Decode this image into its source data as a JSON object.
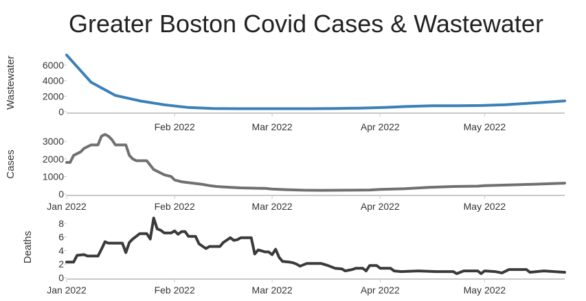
{
  "title": "Greater Boston Covid Cases & Wastewater",
  "colors": {
    "wastewater": "#3a80b8",
    "cases": "#707070",
    "deaths": "#3a3a3a",
    "axis": "#c8c8c8",
    "text": "#333333"
  },
  "chart_data": [
    {
      "type": "line",
      "id": "wastewater",
      "ylabel": "Wastewater",
      "ylim": [
        0,
        7500
      ],
      "yticks": [
        0,
        2000,
        4000,
        6000
      ],
      "xlim": [
        "2022-01-01",
        "2022-05-24"
      ],
      "xticks": [
        {
          "date": "2022-02-01",
          "label": "Feb 2022"
        },
        {
          "date": "2022-03-01",
          "label": "Mar 2022"
        },
        {
          "date": "2022-04-01",
          "label": "Apr 2022"
        },
        {
          "date": "2022-05-01",
          "label": "May 2022"
        }
      ],
      "series": [
        {
          "color": "#3a80b8",
          "points": [
            [
              "2022-01-01",
              7300
            ],
            [
              "2022-01-08",
              3800
            ],
            [
              "2022-01-15",
              2100
            ],
            [
              "2022-01-22",
              1400
            ],
            [
              "2022-01-29",
              900
            ],
            [
              "2022-02-05",
              550
            ],
            [
              "2022-02-12",
              420
            ],
            [
              "2022-02-19",
              400
            ],
            [
              "2022-02-26",
              400
            ],
            [
              "2022-03-05",
              400
            ],
            [
              "2022-03-12",
              400
            ],
            [
              "2022-03-19",
              420
            ],
            [
              "2022-03-26",
              470
            ],
            [
              "2022-04-02",
              560
            ],
            [
              "2022-04-09",
              680
            ],
            [
              "2022-04-16",
              780
            ],
            [
              "2022-04-23",
              780
            ],
            [
              "2022-04-30",
              800
            ],
            [
              "2022-05-07",
              900
            ],
            [
              "2022-05-14",
              1100
            ],
            [
              "2022-05-21",
              1300
            ],
            [
              "2022-05-24",
              1400
            ]
          ]
        }
      ]
    },
    {
      "type": "line",
      "id": "cases",
      "ylabel": "Cases",
      "ylim": [
        0,
        3400
      ],
      "yticks": [
        0,
        1000,
        2000,
        3000
      ],
      "xlim": [
        "2022-01-01",
        "2022-05-24"
      ],
      "xticks": [
        {
          "date": "2022-01-01",
          "label": "Jan 2022"
        },
        {
          "date": "2022-02-01",
          "label": "Feb 2022"
        },
        {
          "date": "2022-03-01",
          "label": "Mar 2022"
        },
        {
          "date": "2022-04-01",
          "label": "Apr 2022"
        },
        {
          "date": "2022-05-01",
          "label": "May 2022"
        }
      ],
      "series": [
        {
          "color": "#707070",
          "points": [
            [
              "2022-01-01",
              1800
            ],
            [
              "2022-01-02",
              1800
            ],
            [
              "2022-01-03",
              2200
            ],
            [
              "2022-01-05",
              2400
            ],
            [
              "2022-01-06",
              2600
            ],
            [
              "2022-01-07",
              2700
            ],
            [
              "2022-01-08",
              2800
            ],
            [
              "2022-01-10",
              2800
            ],
            [
              "2022-01-11",
              3300
            ],
            [
              "2022-01-12",
              3400
            ],
            [
              "2022-01-13",
              3300
            ],
            [
              "2022-01-14",
              3100
            ],
            [
              "2022-01-15",
              2800
            ],
            [
              "2022-01-18",
              2800
            ],
            [
              "2022-01-19",
              2200
            ],
            [
              "2022-01-20",
              2000
            ],
            [
              "2022-01-21",
              1900
            ],
            [
              "2022-01-24",
              1900
            ],
            [
              "2022-01-26",
              1400
            ],
            [
              "2022-01-28",
              1200
            ],
            [
              "2022-01-29",
              1100
            ],
            [
              "2022-01-31",
              1000
            ],
            [
              "2022-02-01",
              800
            ],
            [
              "2022-02-03",
              700
            ],
            [
              "2022-02-05",
              650
            ],
            [
              "2022-02-07",
              600
            ],
            [
              "2022-02-09",
              550
            ],
            [
              "2022-02-11",
              480
            ],
            [
              "2022-02-13",
              430
            ],
            [
              "2022-02-17",
              380
            ],
            [
              "2022-02-20",
              350
            ],
            [
              "2022-02-27",
              320
            ],
            [
              "2022-03-01",
              280
            ],
            [
              "2022-03-05",
              250
            ],
            [
              "2022-03-10",
              220
            ],
            [
              "2022-03-15",
              210
            ],
            [
              "2022-03-22",
              220
            ],
            [
              "2022-03-29",
              230
            ],
            [
              "2022-04-01",
              260
            ],
            [
              "2022-04-08",
              300
            ],
            [
              "2022-04-15",
              380
            ],
            [
              "2022-04-22",
              430
            ],
            [
              "2022-04-29",
              450
            ],
            [
              "2022-05-01",
              480
            ],
            [
              "2022-05-08",
              520
            ],
            [
              "2022-05-15",
              560
            ],
            [
              "2022-05-24",
              620
            ]
          ]
        }
      ]
    },
    {
      "type": "line",
      "id": "deaths",
      "ylabel": "Deaths",
      "ylim": [
        0,
        9
      ],
      "yticks": [
        0,
        2,
        4,
        6,
        8
      ],
      "xlim": [
        "2022-01-01",
        "2022-05-24"
      ],
      "xticks": [
        {
          "date": "2022-01-01",
          "label": "Jan 2022"
        },
        {
          "date": "2022-02-01",
          "label": "Feb 2022"
        },
        {
          "date": "2022-03-01",
          "label": "Mar 2022"
        },
        {
          "date": "2022-04-01",
          "label": "Apr 2022"
        },
        {
          "date": "2022-05-01",
          "label": "May 2022"
        }
      ],
      "series": [
        {
          "color": "#3a3a3a",
          "points": [
            [
              "2022-01-01",
              2.3
            ],
            [
              "2022-01-03",
              2.3
            ],
            [
              "2022-01-04",
              3.3
            ],
            [
              "2022-01-06",
              3.4
            ],
            [
              "2022-01-07",
              3.2
            ],
            [
              "2022-01-10",
              3.2
            ],
            [
              "2022-01-11",
              4.2
            ],
            [
              "2022-01-12",
              5.3
            ],
            [
              "2022-01-13",
              5.1
            ],
            [
              "2022-01-17",
              5.1
            ],
            [
              "2022-01-18",
              3.7
            ],
            [
              "2022-01-19",
              5.2
            ],
            [
              "2022-01-20",
              5.7
            ],
            [
              "2022-01-22",
              6.5
            ],
            [
              "2022-01-24",
              6.5
            ],
            [
              "2022-01-25",
              5.7
            ],
            [
              "2022-01-26",
              8.8
            ],
            [
              "2022-01-27",
              7.2
            ],
            [
              "2022-01-28",
              7.0
            ],
            [
              "2022-01-29",
              6.6
            ],
            [
              "2022-01-31",
              6.6
            ],
            [
              "2022-02-01",
              6.9
            ],
            [
              "2022-02-02",
              6.4
            ],
            [
              "2022-02-03",
              6.8
            ],
            [
              "2022-02-04",
              6.8
            ],
            [
              "2022-02-05",
              6.1
            ],
            [
              "2022-02-07",
              6.1
            ],
            [
              "2022-02-08",
              5.0
            ],
            [
              "2022-02-10",
              4.3
            ],
            [
              "2022-02-11",
              4.6
            ],
            [
              "2022-02-14",
              4.6
            ],
            [
              "2022-02-15",
              5.2
            ],
            [
              "2022-02-17",
              5.9
            ],
            [
              "2022-02-18",
              5.5
            ],
            [
              "2022-02-19",
              5.6
            ],
            [
              "2022-02-20",
              5.9
            ],
            [
              "2022-02-23",
              5.9
            ],
            [
              "2022-02-24",
              3.5
            ],
            [
              "2022-02-25",
              4.1
            ],
            [
              "2022-02-27",
              3.8
            ],
            [
              "2022-02-28",
              3.8
            ],
            [
              "2022-03-01",
              3.4
            ],
            [
              "2022-03-02",
              4.2
            ],
            [
              "2022-03-03",
              3.0
            ],
            [
              "2022-03-04",
              2.4
            ],
            [
              "2022-03-06",
              2.3
            ],
            [
              "2022-03-07",
              2.2
            ],
            [
              "2022-03-08",
              2.0
            ],
            [
              "2022-03-09",
              1.7
            ],
            [
              "2022-03-11",
              2.1
            ],
            [
              "2022-03-15",
              2.1
            ],
            [
              "2022-03-17",
              1.8
            ],
            [
              "2022-03-19",
              1.4
            ],
            [
              "2022-03-21",
              1.3
            ],
            [
              "2022-03-22",
              1.0
            ],
            [
              "2022-03-24",
              1.2
            ],
            [
              "2022-03-25",
              1.4
            ],
            [
              "2022-03-27",
              1.4
            ],
            [
              "2022-03-28",
              1.0
            ],
            [
              "2022-03-29",
              1.8
            ],
            [
              "2022-03-31",
              1.8
            ],
            [
              "2022-04-01",
              1.4
            ],
            [
              "2022-04-04",
              1.4
            ],
            [
              "2022-04-05",
              1.0
            ],
            [
              "2022-04-07",
              0.9
            ],
            [
              "2022-04-12",
              1.0
            ],
            [
              "2022-04-17",
              0.9
            ],
            [
              "2022-04-22",
              0.9
            ],
            [
              "2022-04-23",
              0.6
            ],
            [
              "2022-04-25",
              1.0
            ],
            [
              "2022-04-29",
              1.0
            ],
            [
              "2022-04-30",
              0.6
            ],
            [
              "2022-05-01",
              1.0
            ],
            [
              "2022-05-04",
              0.9
            ],
            [
              "2022-05-06",
              0.7
            ],
            [
              "2022-05-08",
              1.2
            ],
            [
              "2022-05-13",
              1.2
            ],
            [
              "2022-05-14",
              0.8
            ],
            [
              "2022-05-18",
              1.0
            ],
            [
              "2022-05-24",
              0.8
            ]
          ]
        }
      ]
    }
  ]
}
